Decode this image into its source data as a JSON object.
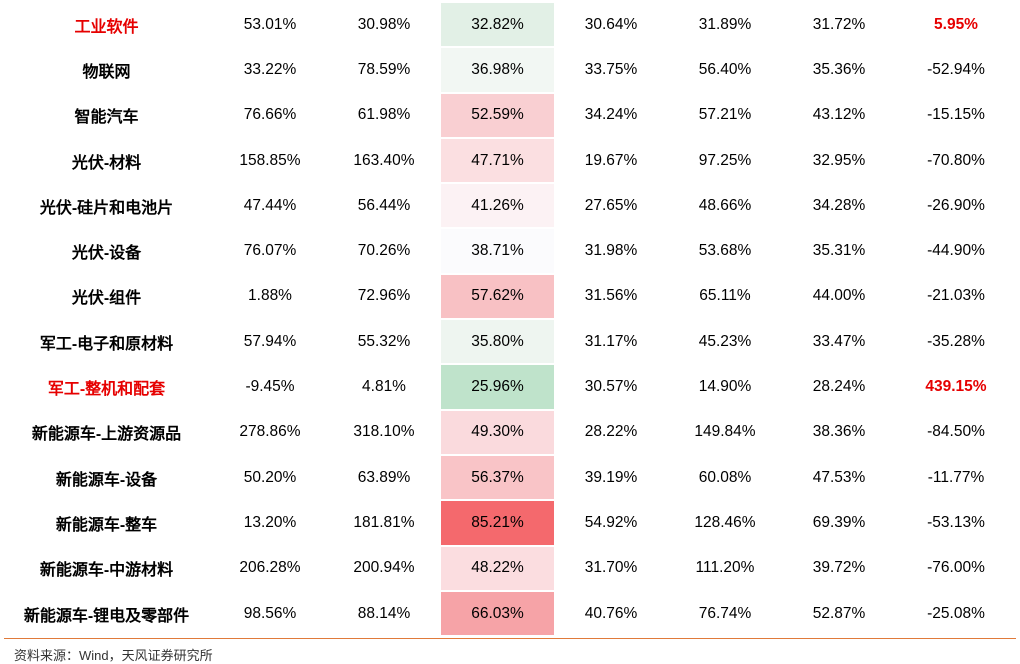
{
  "rows": [
    {
      "name": "工业软件",
      "v1": "53.01%",
      "v2": "30.98%",
      "v3": "32.82%",
      "v4": "30.64%",
      "v5": "31.89%",
      "v6": "31.72%",
      "v7": "5.95%",
      "highlight": true,
      "bg": "#e2f0e6"
    },
    {
      "name": "物联网",
      "v1": "33.22%",
      "v2": "78.59%",
      "v3": "36.98%",
      "v4": "33.75%",
      "v5": "56.40%",
      "v6": "35.36%",
      "v7": "-52.94%",
      "highlight": false,
      "bg": "#f2f7f3"
    },
    {
      "name": "智能汽车",
      "v1": "76.66%",
      "v2": "61.98%",
      "v3": "52.59%",
      "v4": "34.24%",
      "v5": "57.21%",
      "v6": "43.12%",
      "v7": "-15.15%",
      "highlight": false,
      "bg": "#f9cfd2"
    },
    {
      "name": "光伏-材料",
      "v1": "158.85%",
      "v2": "163.40%",
      "v3": "47.71%",
      "v4": "19.67%",
      "v5": "97.25%",
      "v6": "32.95%",
      "v7": "-70.80%",
      "highlight": false,
      "bg": "#fbdfe1"
    },
    {
      "name": "光伏-硅片和电池片",
      "v1": "47.44%",
      "v2": "56.44%",
      "v3": "41.26%",
      "v4": "27.65%",
      "v5": "48.66%",
      "v6": "34.28%",
      "v7": "-26.90%",
      "highlight": false,
      "bg": "#fcf2f4"
    },
    {
      "name": "光伏-设备",
      "v1": "76.07%",
      "v2": "70.26%",
      "v3": "38.71%",
      "v4": "31.98%",
      "v5": "53.68%",
      "v6": "35.31%",
      "v7": "-44.90%",
      "highlight": false,
      "bg": "#fbfbfd"
    },
    {
      "name": "光伏-组件",
      "v1": "1.88%",
      "v2": "72.96%",
      "v3": "57.62%",
      "v4": "31.56%",
      "v5": "65.11%",
      "v6": "44.00%",
      "v7": "-21.03%",
      "highlight": false,
      "bg": "#f8c1c4"
    },
    {
      "name": "军工-电子和原材料",
      "v1": "57.94%",
      "v2": "55.32%",
      "v3": "35.80%",
      "v4": "31.17%",
      "v5": "45.23%",
      "v6": "33.47%",
      "v7": "-35.28%",
      "highlight": false,
      "bg": "#eef5f0"
    },
    {
      "name": "军工-整机和配套",
      "v1": "-9.45%",
      "v2": "4.81%",
      "v3": "25.96%",
      "v4": "30.57%",
      "v5": "14.90%",
      "v6": "28.24%",
      "v7": "439.15%",
      "highlight": true,
      "bg": "#bfe3cb"
    },
    {
      "name": "新能源车-上游资源品",
      "v1": "278.86%",
      "v2": "318.10%",
      "v3": "49.30%",
      "v4": "28.22%",
      "v5": "149.84%",
      "v6": "38.36%",
      "v7": "-84.50%",
      "highlight": false,
      "bg": "#fadadd"
    },
    {
      "name": "新能源车-设备",
      "v1": "50.20%",
      "v2": "63.89%",
      "v3": "56.37%",
      "v4": "39.19%",
      "v5": "60.08%",
      "v6": "47.53%",
      "v7": "-11.77%",
      "highlight": false,
      "bg": "#f9c4c7"
    },
    {
      "name": "新能源车-整车",
      "v1": "13.20%",
      "v2": "181.81%",
      "v3": "85.21%",
      "v4": "54.92%",
      "v5": "128.46%",
      "v6": "69.39%",
      "v7": "-53.13%",
      "highlight": false,
      "bg": "#f4696d"
    },
    {
      "name": "新能源车-中游材料",
      "v1": "206.28%",
      "v2": "200.94%",
      "v3": "48.22%",
      "v4": "31.70%",
      "v5": "111.20%",
      "v6": "39.72%",
      "v7": "-76.00%",
      "highlight": false,
      "bg": "#fbdde0"
    },
    {
      "name": "新能源车-锂电及零部件",
      "v1": "98.56%",
      "v2": "88.14%",
      "v3": "66.03%",
      "v4": "40.76%",
      "v5": "76.74%",
      "v6": "52.87%",
      "v7": "-25.08%",
      "highlight": false,
      "bg": "#f6a3a7"
    }
  ],
  "source": "资料来源：Wind，天风证券研究所"
}
